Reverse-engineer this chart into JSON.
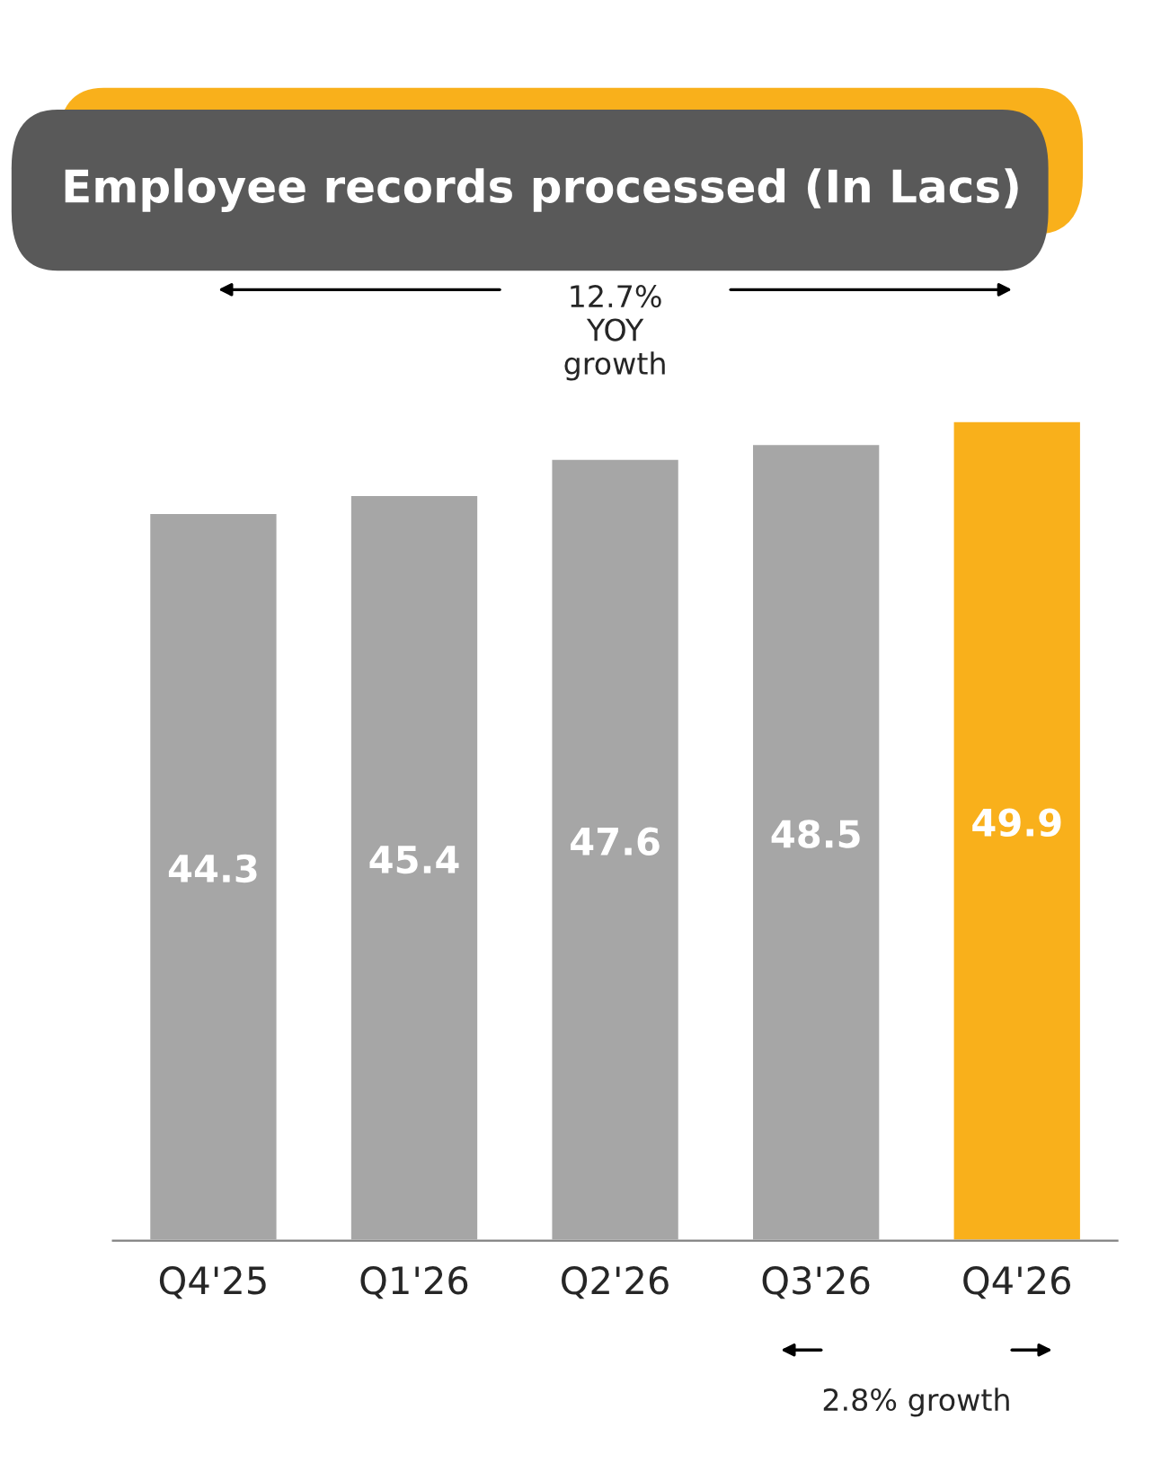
{
  "chart_data": {
    "type": "bar",
    "title": "Employee records processed (In Lacs)",
    "categories": [
      "Q4'25",
      "Q1'26",
      "Q2'26",
      "Q3'26",
      "Q4'26"
    ],
    "values": [
      44.3,
      45.4,
      47.6,
      48.5,
      49.9
    ],
    "colors": [
      "#a6a6a6",
      "#a6a6a6",
      "#a6a6a6",
      "#a6a6a6",
      "#f9b01b"
    ],
    "data_labels": true,
    "grid": false,
    "legend": false,
    "tick_labels": "x",
    "annotations": [
      "12.7%\nYOY\ngrowth",
      "2.8% growth"
    ]
  }
}
